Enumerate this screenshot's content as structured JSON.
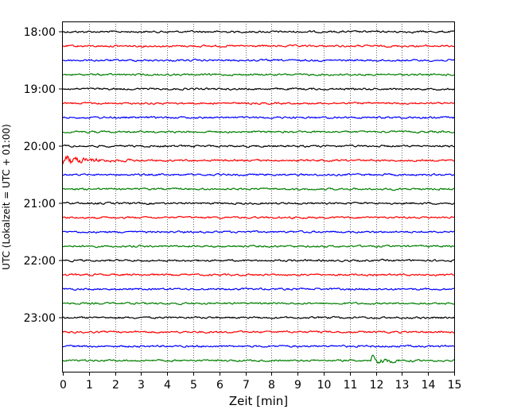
{
  "chart_data": {
    "type": "line",
    "xlabel": "Zeit  [min]",
    "ylabel": "UTC (Lokalzeit = UTC + 01:00)",
    "xlim": [
      0,
      15
    ],
    "x_ticks": [
      0,
      1,
      2,
      3,
      4,
      5,
      6,
      7,
      8,
      9,
      10,
      11,
      12,
      13,
      14,
      15
    ],
    "grid": "vertical dotted",
    "y_ticks": [
      {
        "label": "18:00",
        "row": 0
      },
      {
        "label": "19:00",
        "row": 4
      },
      {
        "label": "20:00",
        "row": 8
      },
      {
        "label": "21:00",
        "row": 12
      },
      {
        "label": "22:00",
        "row": 16
      },
      {
        "label": "23:00",
        "row": 20
      }
    ],
    "row_colors": [
      "#000000",
      "#ff0000",
      "#0000ff",
      "#008000"
    ],
    "rows_count": 24,
    "row_interval_min": 15,
    "events": [
      {
        "row": 9,
        "start_min": 0.0,
        "end_min": 3.0,
        "amplitude": "large"
      },
      {
        "row": 23,
        "start_min": 11.8,
        "end_min": 13.5,
        "amplitude": "large"
      }
    ]
  }
}
